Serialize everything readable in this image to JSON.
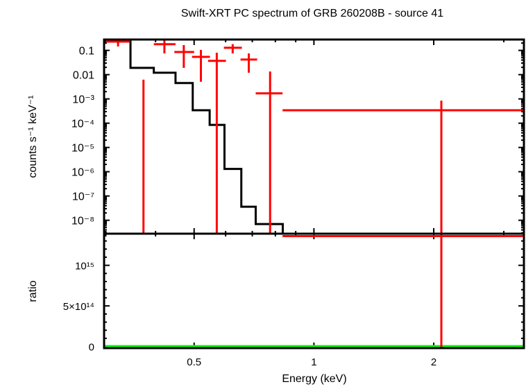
{
  "chart_data": [
    {
      "type": "line",
      "panel": "spectrum",
      "title": "Swift-XRT PC spectrum of GRB 260208B - source 41",
      "ylabel": "counts s⁻¹ keV⁻¹",
      "xscale": "log",
      "yscale": "log",
      "xlim": [
        0.297,
        3.37
      ],
      "ylim": [
        2.8e-09,
        0.28
      ],
      "y_tick_labels": [
        "0.1",
        "0.01",
        "10⁻³",
        "10⁻⁴",
        "10⁻⁵",
        "10⁻⁶",
        "10⁻⁷",
        "10⁻⁸"
      ],
      "y_tick_values": [
        0.1,
        0.01,
        0.001,
        0.0001,
        1e-05,
        1e-06,
        1e-07,
        1e-08
      ],
      "data_color": "#ff0000",
      "model_color": "#000000",
      "data": [
        {
          "x": 0.322,
          "xlo": 0.3,
          "xhi": 0.345,
          "y": 0.23,
          "ylo": 0.145,
          "yhi": 0.28
        },
        {
          "x": 0.373,
          "xlo": 0.346,
          "xhi": 0.396,
          "y": 0,
          "ylo": 0,
          "yhi": 0.0062
        },
        {
          "x": 0.421,
          "xlo": 0.396,
          "xhi": 0.449,
          "y": 0.18,
          "ylo": 0.075,
          "yhi": 0.28
        },
        {
          "x": 0.471,
          "xlo": 0.446,
          "xhi": 0.5,
          "y": 0.086,
          "ylo": 0.019,
          "yhi": 0.166
        },
        {
          "x": 0.52,
          "xlo": 0.494,
          "xhi": 0.548,
          "y": 0.054,
          "ylo": 0.0051,
          "yhi": 0.105
        },
        {
          "x": 0.57,
          "xlo": 0.542,
          "xhi": 0.601,
          "y": 0.037,
          "ylo": 0,
          "yhi": 0.08
        },
        {
          "x": 0.625,
          "xlo": 0.594,
          "xhi": 0.659,
          "y": 0.128,
          "ylo": 0.075,
          "yhi": 0.18
        },
        {
          "x": 0.686,
          "xlo": 0.654,
          "xhi": 0.72,
          "y": 0.042,
          "ylo": 0.012,
          "yhi": 0.075
        },
        {
          "x": 0.776,
          "xlo": 0.714,
          "xhi": 0.834,
          "y": 0.0017,
          "ylo": 0,
          "yhi": 0.0135
        },
        {
          "x": 2.09,
          "xlo": 0.834,
          "xhi": 3.37,
          "y": 0.00034,
          "ylo": 0,
          "yhi": 0.00085
        }
      ],
      "model_steps": {
        "edges": [
          0.297,
          0.346,
          0.396,
          0.449,
          0.496,
          0.547,
          0.596,
          0.657,
          0.714,
          0.835
        ],
        "values": [
          0.23,
          0.019,
          0.012,
          0.0045,
          0.00034,
          8.5e-05,
          1.3e-06,
          3.6e-08,
          7e-09
        ]
      }
    },
    {
      "type": "line",
      "panel": "ratio",
      "xlabel": "Energy (keV)",
      "ylabel": "ratio",
      "xscale": "log",
      "xlim": [
        0.297,
        3.37
      ],
      "ylim": [
        -20000000000000.0,
        1390000000000000.0
      ],
      "x_tick_labels": [
        "0.5",
        "1",
        "2"
      ],
      "x_tick_values": [
        0.5,
        1,
        2
      ],
      "y_tick_labels": [
        "0",
        "5×10¹⁴",
        "10¹⁵"
      ],
      "y_tick_values": [
        0,
        500000000000000.0,
        1000000000000000.0
      ],
      "reference_line": 0,
      "reference_color": "#00ff00",
      "data_color": "#ff0000",
      "data": [
        {
          "x": 2.09,
          "xlo": 0.834,
          "xhi": 3.37,
          "y": 1360000000000000.0,
          "ylo": -1e+16,
          "yhi": 1e+16
        }
      ]
    }
  ]
}
